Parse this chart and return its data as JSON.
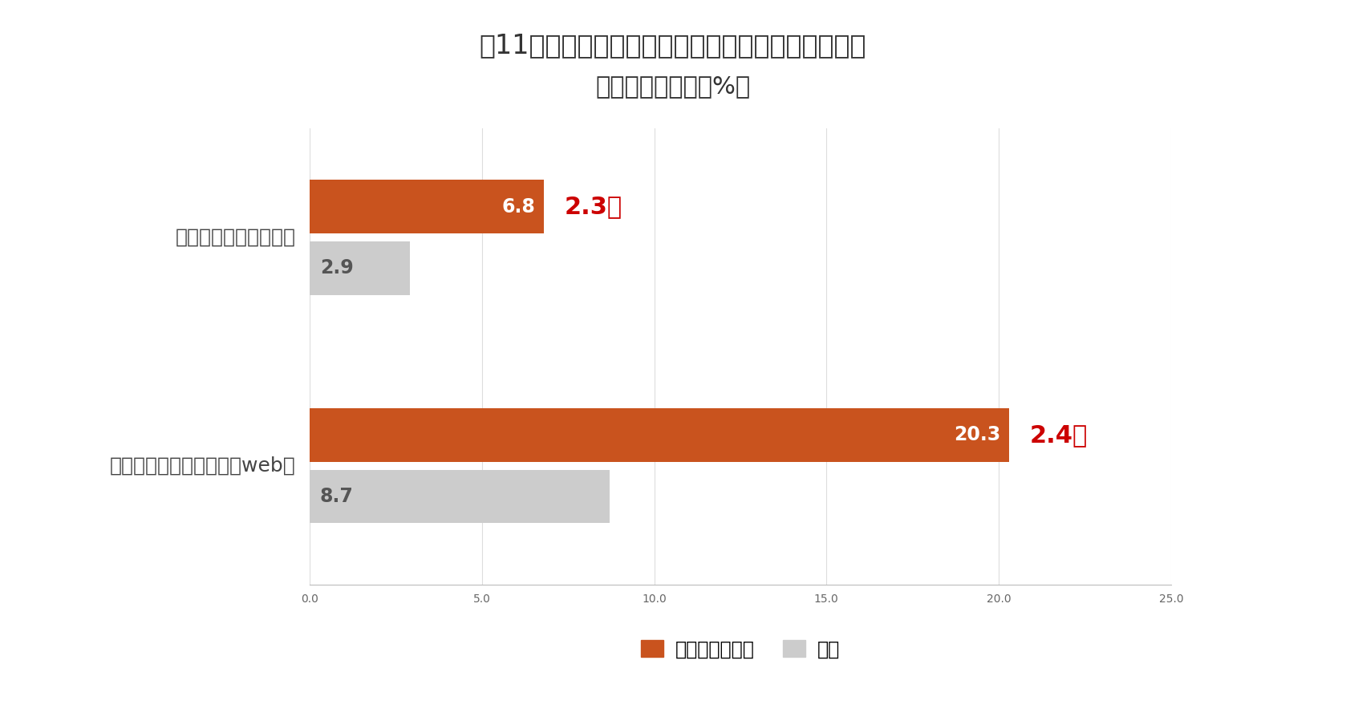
{
  "title_line1": "図11：リカバリー行動としてのスポーツ観戦実施率",
  "title_line2": "【女性】（単位：%）",
  "categories": [
    "スポーツ観戦（現地）",
    "スポーツ観戦（テレビ、web）"
  ],
  "sports_fan_values": [
    6.8,
    20.3
  ],
  "general_values": [
    2.9,
    8.7
  ],
  "multipliers": [
    "2.3倍",
    "2.4倍"
  ],
  "bar_color_fan": "#c9531e",
  "bar_color_general": "#cccccc",
  "multiplier_color": "#cc0000",
  "text_color_fan": "#ffffff",
  "text_color_general": "#555555",
  "xlim": [
    0,
    25.0
  ],
  "xticks": [
    0.0,
    5.0,
    10.0,
    15.0,
    20.0,
    25.0
  ],
  "background_color": "#ffffff",
  "legend_label_fan": "スポーツファン",
  "legend_label_general": "全体",
  "title_fontsize": 24,
  "subtitle_fontsize": 22,
  "label_fontsize": 18,
  "value_fontsize": 17,
  "multiplier_fontsize": 22,
  "tick_fontsize": 15,
  "legend_fontsize": 17
}
